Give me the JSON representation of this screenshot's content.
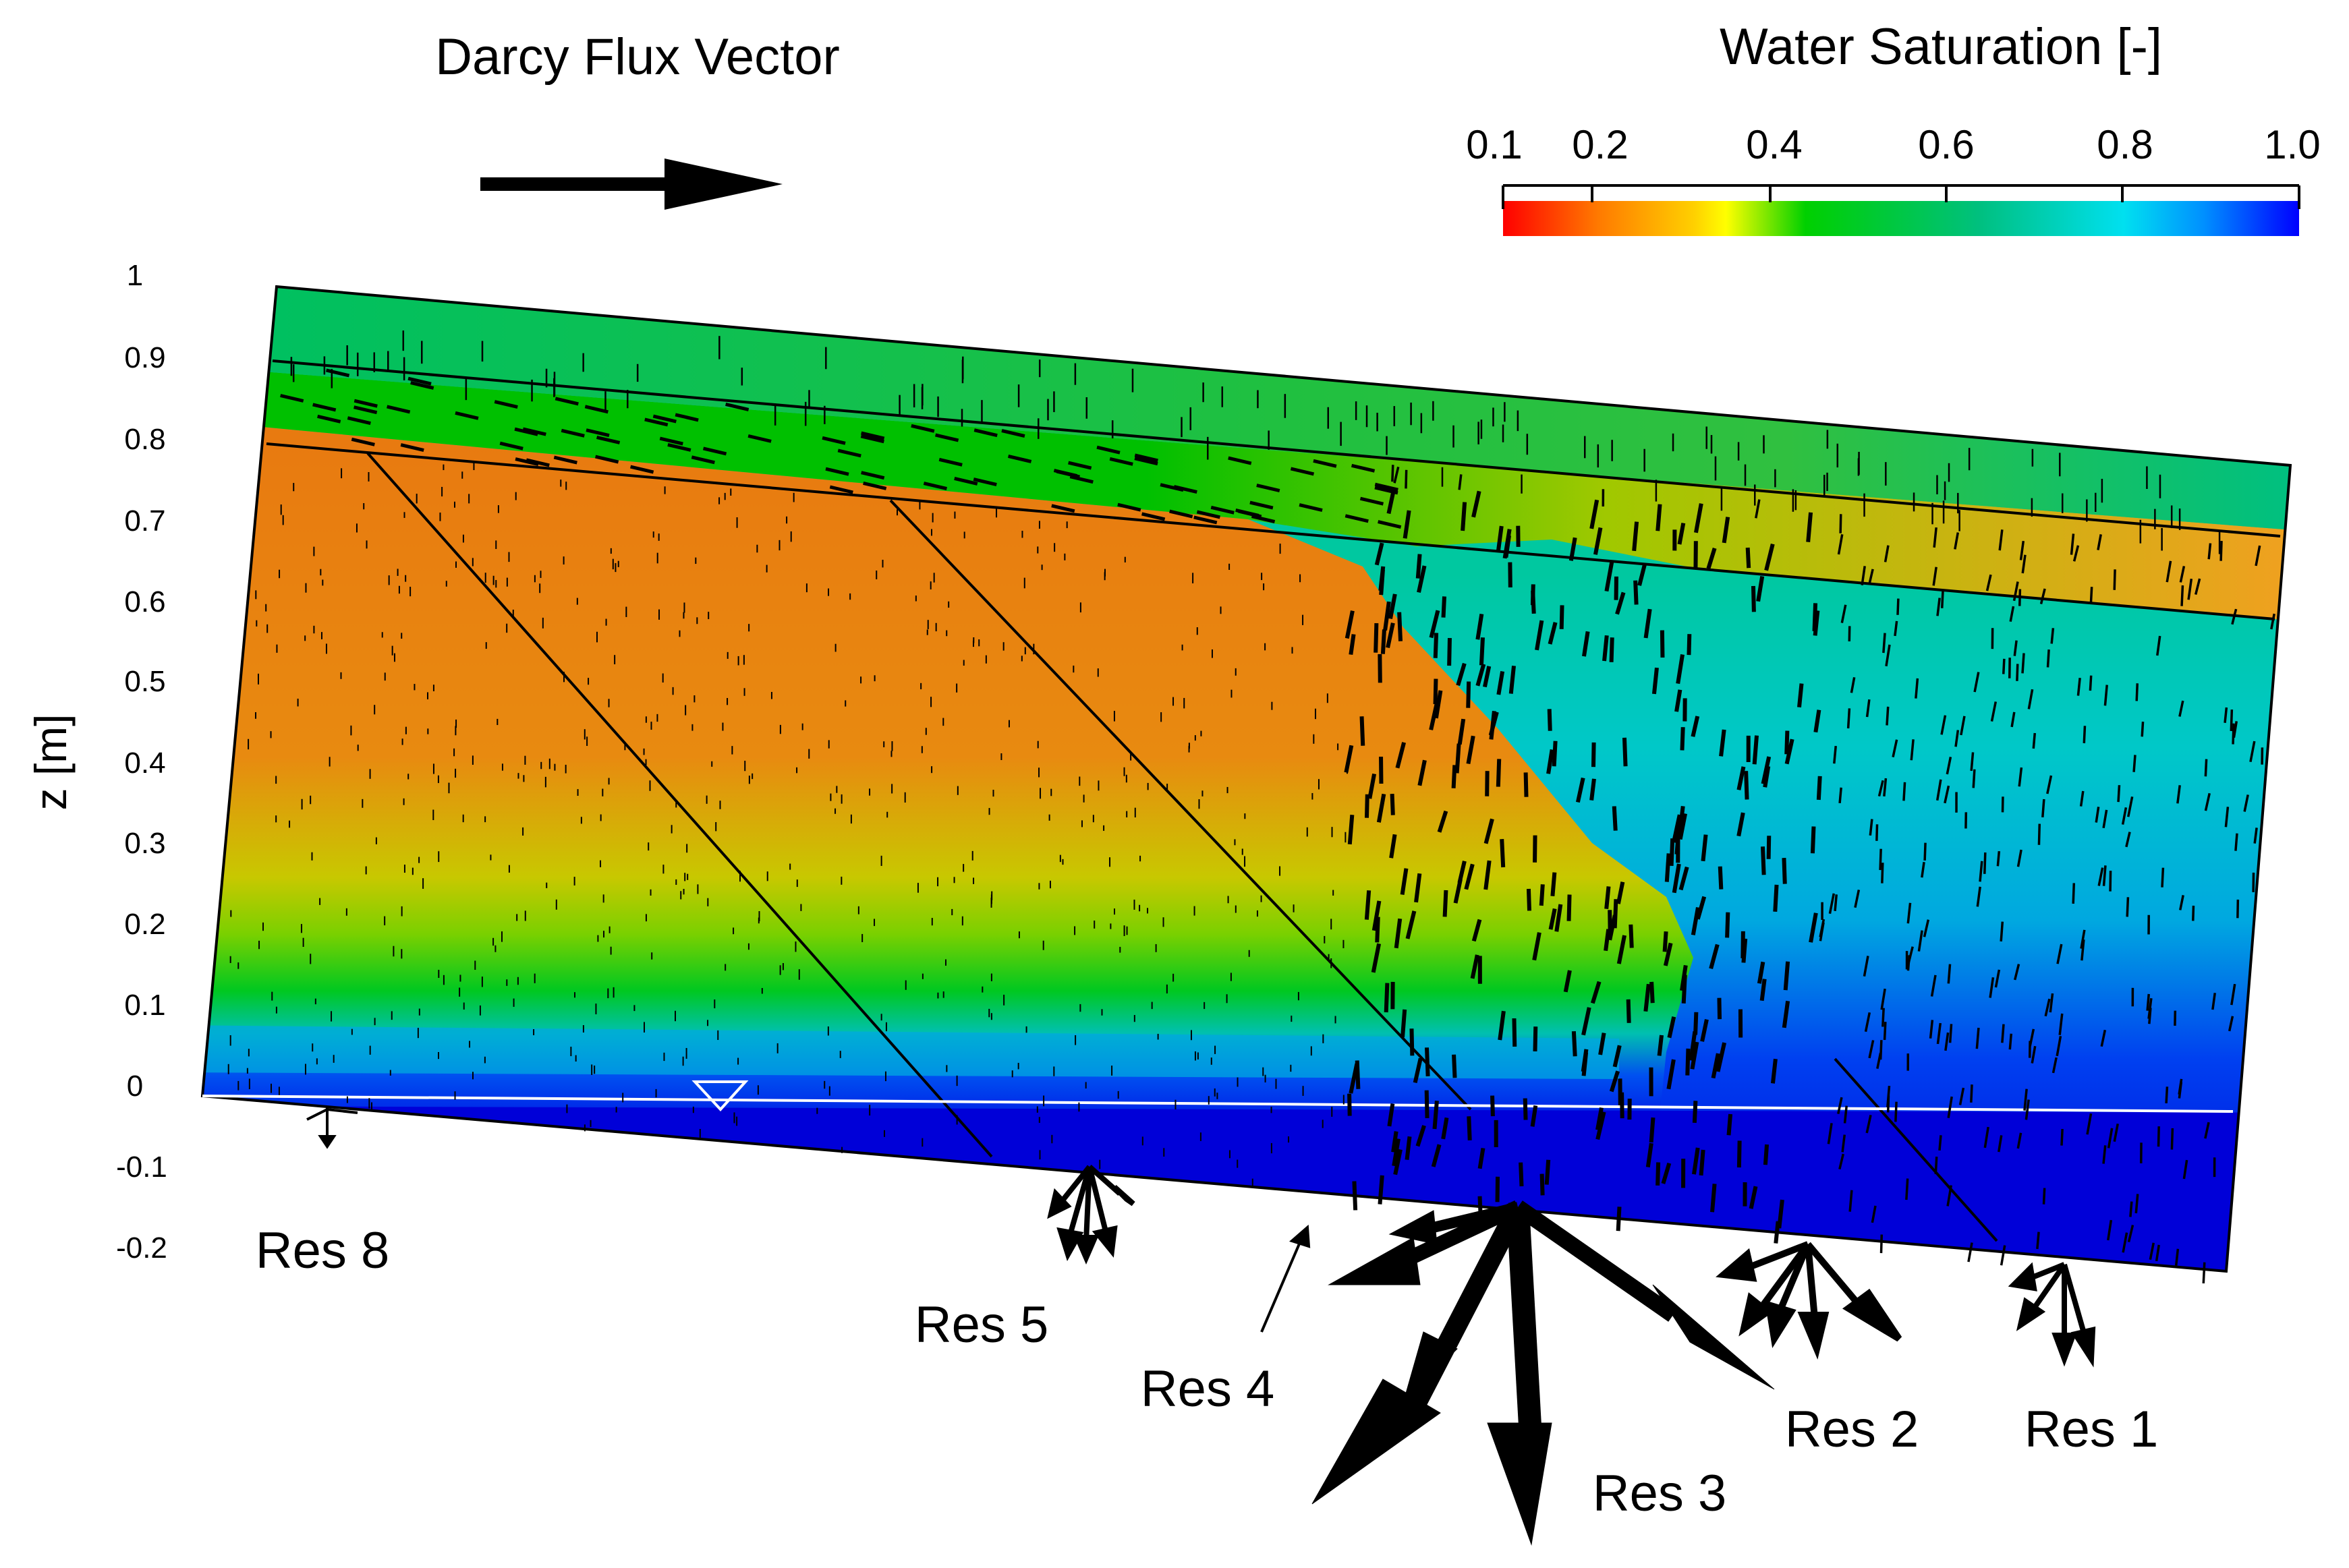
{
  "legend": {
    "flux_title": "Darcy Flux Vector",
    "saturation_title": "Water Saturation [-]",
    "colorbar_ticks": [
      "0.1",
      "0.2",
      "0.4",
      "0.6",
      "0.8",
      "1.0"
    ],
    "colormap": [
      "#ff0000",
      "#ff7a00",
      "#ffd000",
      "#ffff00",
      "#00d000",
      "#00c050",
      "#00e0e0",
      "#00a0ff",
      "#0000ff"
    ]
  },
  "axis": {
    "ylabel": "z [m]",
    "ticks": [
      "1",
      "0.9",
      "0.8",
      "0.7",
      "0.6",
      "0.5",
      "0.4",
      "0.3",
      "0.2",
      "0.1",
      "0",
      "-0.1",
      "-0.2"
    ]
  },
  "reservoirs": {
    "res8": "Res 8",
    "res5": "Res 5",
    "res4": "Res 4",
    "res3": "Res 3",
    "res2": "Res 2",
    "res1": "Res 1"
  },
  "colors": {
    "wet_top": "#00c070",
    "dry_core": "#e87000",
    "saturated_base": "#0000e0",
    "arrow": "#000000"
  }
}
